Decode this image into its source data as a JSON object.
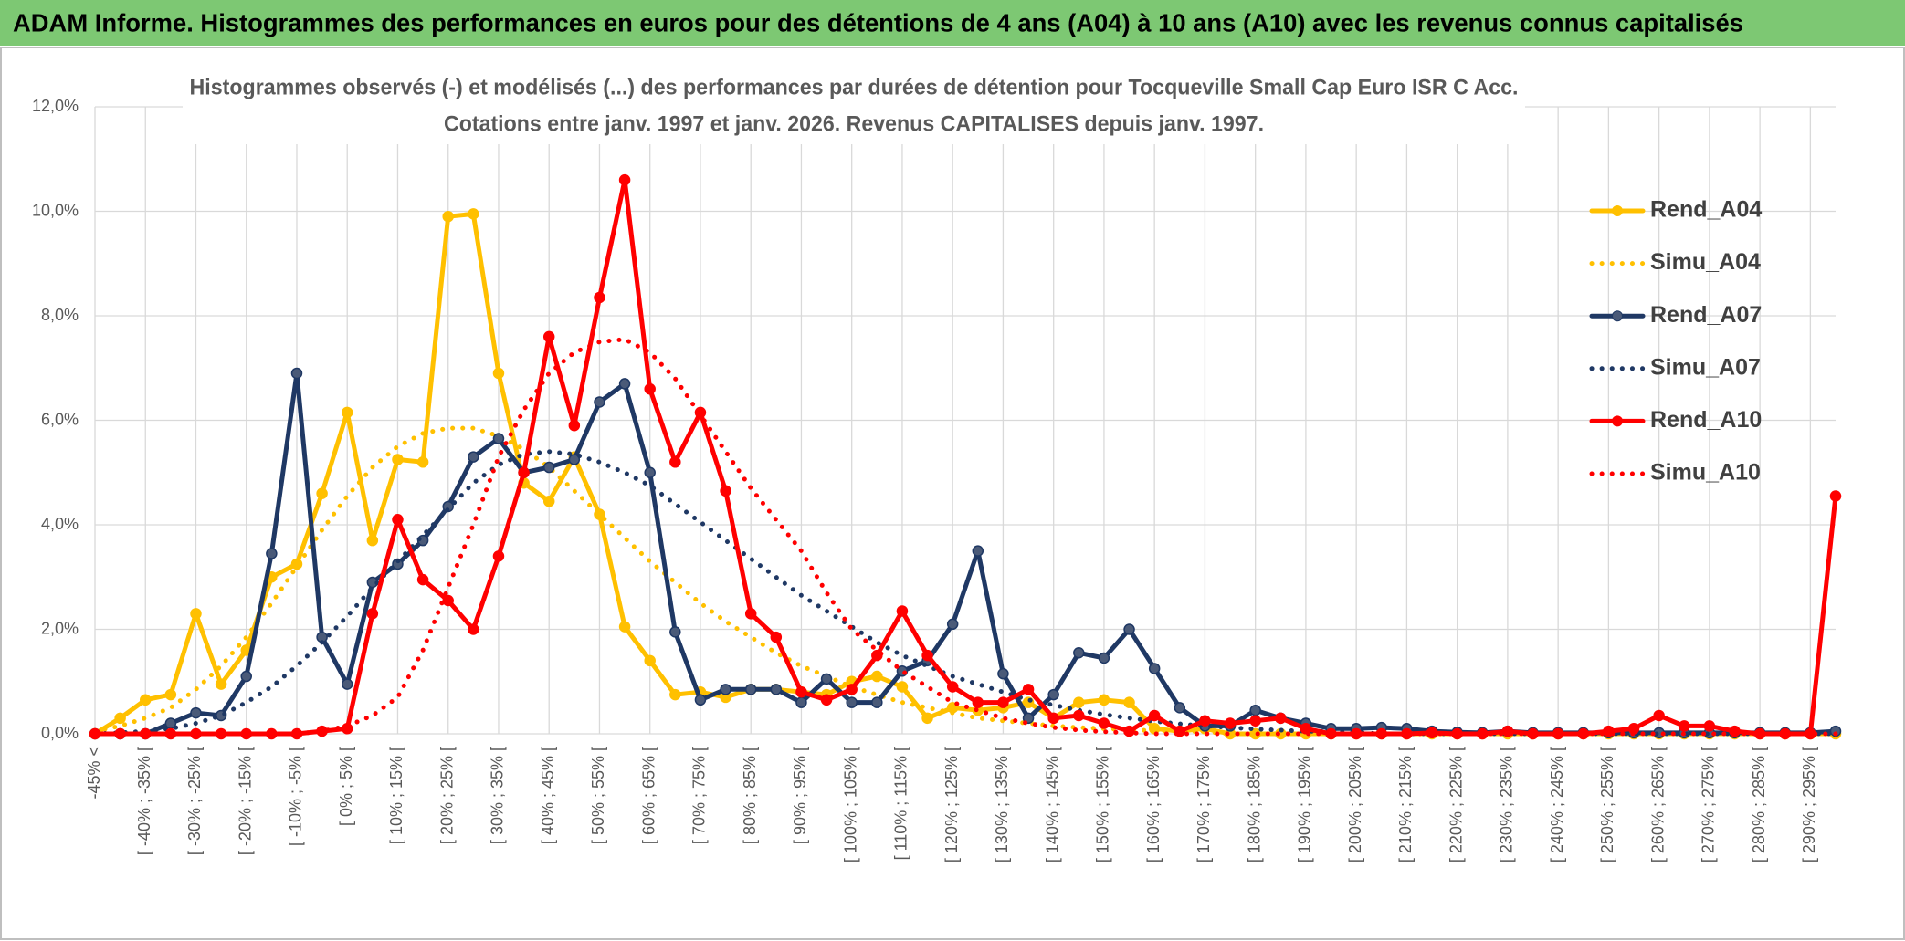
{
  "chart_data": {
    "type": "line",
    "title": "ADAM Informe. Histogrammes des performances en euros pour des détentions de 4 ans (A04) à 10 ans (A10) avec les revenus connus capitalisés",
    "subtitle": [
      "Histogrammes observés (-) et modélisés (...) des performances par durées de détention pour Tocqueville Small Cap Euro ISR C Acc.",
      "Cotations entre janv. 1997 et janv. 2026. Revenus CAPITALISES depuis janv. 1997."
    ],
    "categories": [
      "-45% <",
      null,
      "[ -40% ; -35% [",
      null,
      "[ -30% ; -25% [",
      null,
      "[ -20% ; -15% [",
      null,
      "[ -10% ; -5% [",
      null,
      "[ 0% ; 5% [",
      null,
      "[ 10% ; 15% [",
      null,
      "[ 20% ; 25% [",
      null,
      "[ 30% ; 35% [",
      null,
      "[ 40% ; 45% [",
      null,
      "[ 50% ; 55% [",
      null,
      "[ 60% ; 65% [",
      null,
      "[ 70% ; 75% [",
      null,
      "[ 80% ; 85% [",
      null,
      "[ 90% ; 95% [",
      null,
      "[ 100% ; 105% [",
      null,
      "[ 110% ; 115% [",
      null,
      "[ 120% ; 125% [",
      null,
      "[ 130% ; 135% [",
      null,
      "[ 140% ; 145% [",
      null,
      "[ 150% ; 155% [",
      null,
      "[ 160% ; 165% [",
      null,
      "[ 170% ; 175% [",
      null,
      "[ 180% ; 185% [",
      null,
      "[ 190% ; 195% [",
      null,
      "[ 200% ; 205% [",
      null,
      "[ 210% ; 215% [",
      null,
      "[ 220% ; 225% [",
      null,
      "[ 230% ; 235% [",
      null,
      "[ 240% ; 245% [",
      null,
      "[ 250% ; 255% [",
      null,
      "[ 260% ; 265% [",
      null,
      "[ 270% ; 275% [",
      null,
      "[ 280% ; 285% [",
      null,
      "[ 290% ; 295% [",
      null
    ],
    "series": [
      {
        "name": "Rend_A04",
        "color": "#FFC000",
        "style": "solid",
        "markers": true,
        "values": [
          0,
          0.3,
          0.65,
          0.75,
          2.3,
          0.95,
          1.6,
          3.0,
          3.25,
          4.6,
          6.15,
          3.7,
          5.25,
          5.2,
          9.9,
          9.95,
          6.9,
          4.8,
          4.45,
          5.3,
          4.2,
          2.05,
          1.4,
          0.75,
          0.8,
          0.7,
          0.85,
          0.85,
          0.8,
          0.75,
          1.0,
          1.1,
          0.9,
          0.3,
          0.5,
          0.45,
          0.5,
          0.6,
          0.3,
          0.6,
          0.65,
          0.6,
          0.1,
          0.05,
          0.1,
          0,
          0,
          0,
          0,
          0,
          0,
          0,
          0,
          0,
          0,
          0,
          0,
          0,
          0,
          0,
          0,
          0,
          0,
          0,
          0,
          0,
          0,
          0,
          0,
          0
        ]
      },
      {
        "name": "Simu_A04",
        "color": "#FFC000",
        "style": "dotted",
        "markers": false,
        "values": [
          0.05,
          0.15,
          0.3,
          0.5,
          0.85,
          1.3,
          1.85,
          2.5,
          3.2,
          3.9,
          4.55,
          5.1,
          5.5,
          5.75,
          5.85,
          5.85,
          5.7,
          5.45,
          5.1,
          4.65,
          4.2,
          3.75,
          3.3,
          2.9,
          2.5,
          2.15,
          1.85,
          1.55,
          1.3,
          1.1,
          0.9,
          0.75,
          0.6,
          0.5,
          0.4,
          0.3,
          0.25,
          0.2,
          0.15,
          0.12,
          0.1,
          0.08,
          0.06,
          0.05,
          0.04,
          0,
          0,
          0,
          0,
          0,
          0,
          0,
          0,
          0,
          0,
          0,
          0,
          0,
          0,
          0,
          0,
          0,
          0,
          0,
          0,
          0,
          0,
          0,
          0,
          0
        ]
      },
      {
        "name": "Rend_A07",
        "color": "#1F3864",
        "style": "solid",
        "markers": true,
        "values": [
          0,
          0,
          0,
          0.2,
          0.4,
          0.35,
          1.1,
          3.45,
          6.9,
          1.85,
          0.95,
          2.9,
          3.25,
          3.7,
          4.35,
          5.3,
          5.65,
          5.0,
          5.1,
          5.25,
          6.35,
          6.7,
          5.0,
          1.95,
          0.65,
          0.85,
          0.85,
          0.85,
          0.6,
          1.05,
          0.6,
          0.6,
          1.2,
          1.4,
          2.1,
          3.5,
          1.15,
          0.3,
          0.75,
          1.55,
          1.45,
          2.0,
          1.25,
          0.5,
          0.15,
          0.15,
          0.45,
          0.3,
          0.2,
          0.1,
          0.1,
          0.12,
          0.1,
          0.05,
          0.03,
          0.02,
          0.05,
          0.02,
          0.02,
          0.02,
          0.02,
          0.02,
          0.02,
          0.02,
          0.02,
          0.02,
          0.02,
          0.02,
          0.02,
          0.05
        ]
      },
      {
        "name": "Simu_A07",
        "color": "#1F3864",
        "style": "dotted",
        "markers": false,
        "values": [
          0,
          0.02,
          0.05,
          0.1,
          0.2,
          0.35,
          0.6,
          0.9,
          1.3,
          1.75,
          2.25,
          2.8,
          3.3,
          3.8,
          4.3,
          4.8,
          5.15,
          5.35,
          5.4,
          5.35,
          5.2,
          5.0,
          4.75,
          4.4,
          4.05,
          3.7,
          3.35,
          3.0,
          2.65,
          2.35,
          2.05,
          1.75,
          1.5,
          1.3,
          1.1,
          0.95,
          0.8,
          0.65,
          0.55,
          0.45,
          0.37,
          0.3,
          0.24,
          0.19,
          0.15,
          0.12,
          0.09,
          0.07,
          0.05,
          0.04,
          0.03,
          0,
          0,
          0,
          0,
          0,
          0,
          0,
          0,
          0,
          0,
          0,
          0,
          0,
          0,
          0,
          0,
          0,
          0,
          0
        ]
      },
      {
        "name": "Rend_A10",
        "color": "#FF0000",
        "style": "solid",
        "markers": true,
        "values": [
          0,
          0,
          0,
          0,
          0,
          0,
          0,
          0,
          0,
          0.05,
          0.1,
          2.3,
          4.1,
          2.95,
          2.55,
          2.0,
          3.4,
          5.0,
          7.6,
          5.9,
          8.35,
          10.6,
          6.6,
          5.2,
          6.15,
          4.65,
          2.3,
          1.85,
          0.8,
          0.65,
          0.85,
          1.5,
          2.35,
          1.5,
          0.9,
          0.6,
          0.6,
          0.85,
          0.3,
          0.35,
          0.2,
          0.05,
          0.35,
          0.05,
          0.25,
          0.2,
          0.25,
          0.3,
          0.1,
          0,
          0,
          0,
          0,
          0.02,
          0,
          0,
          0.05,
          0,
          0,
          0,
          0.05,
          0.1,
          0.35,
          0.15,
          0.15,
          0.05,
          0,
          0,
          0,
          4.55
        ]
      },
      {
        "name": "Simu_A10",
        "color": "#FF0000",
        "style": "dotted",
        "markers": false,
        "values": [
          0,
          0,
          0,
          0,
          0,
          0,
          0,
          0,
          0,
          0.05,
          0.15,
          0.35,
          0.7,
          1.6,
          2.8,
          4.0,
          5.3,
          6.2,
          6.9,
          7.3,
          7.5,
          7.55,
          7.3,
          6.8,
          6.1,
          5.4,
          4.7,
          4.1,
          3.5,
          2.7,
          2.0,
          1.6,
          1.2,
          0.9,
          0.6,
          0.45,
          0.3,
          0.2,
          0.12,
          0.07,
          0.04,
          0.02,
          0,
          0,
          0,
          0,
          0,
          0,
          0,
          0,
          0,
          0,
          0,
          0,
          0,
          0,
          0,
          0,
          0,
          0,
          0,
          0,
          0,
          0,
          0,
          0,
          0,
          0,
          0,
          0
        ]
      }
    ],
    "ylim": [
      0,
      12
    ],
    "yticks": [
      {
        "value": 0,
        "label": "0,0%"
      },
      {
        "value": 2,
        "label": "2,0%"
      },
      {
        "value": 4,
        "label": "4,0%"
      },
      {
        "value": 6,
        "label": "6,0%"
      },
      {
        "value": 8,
        "label": "8,0%"
      },
      {
        "value": 10,
        "label": "10,0%"
      },
      {
        "value": 12,
        "label": "12,0%"
      }
    ],
    "grid": true,
    "legend": "right"
  }
}
